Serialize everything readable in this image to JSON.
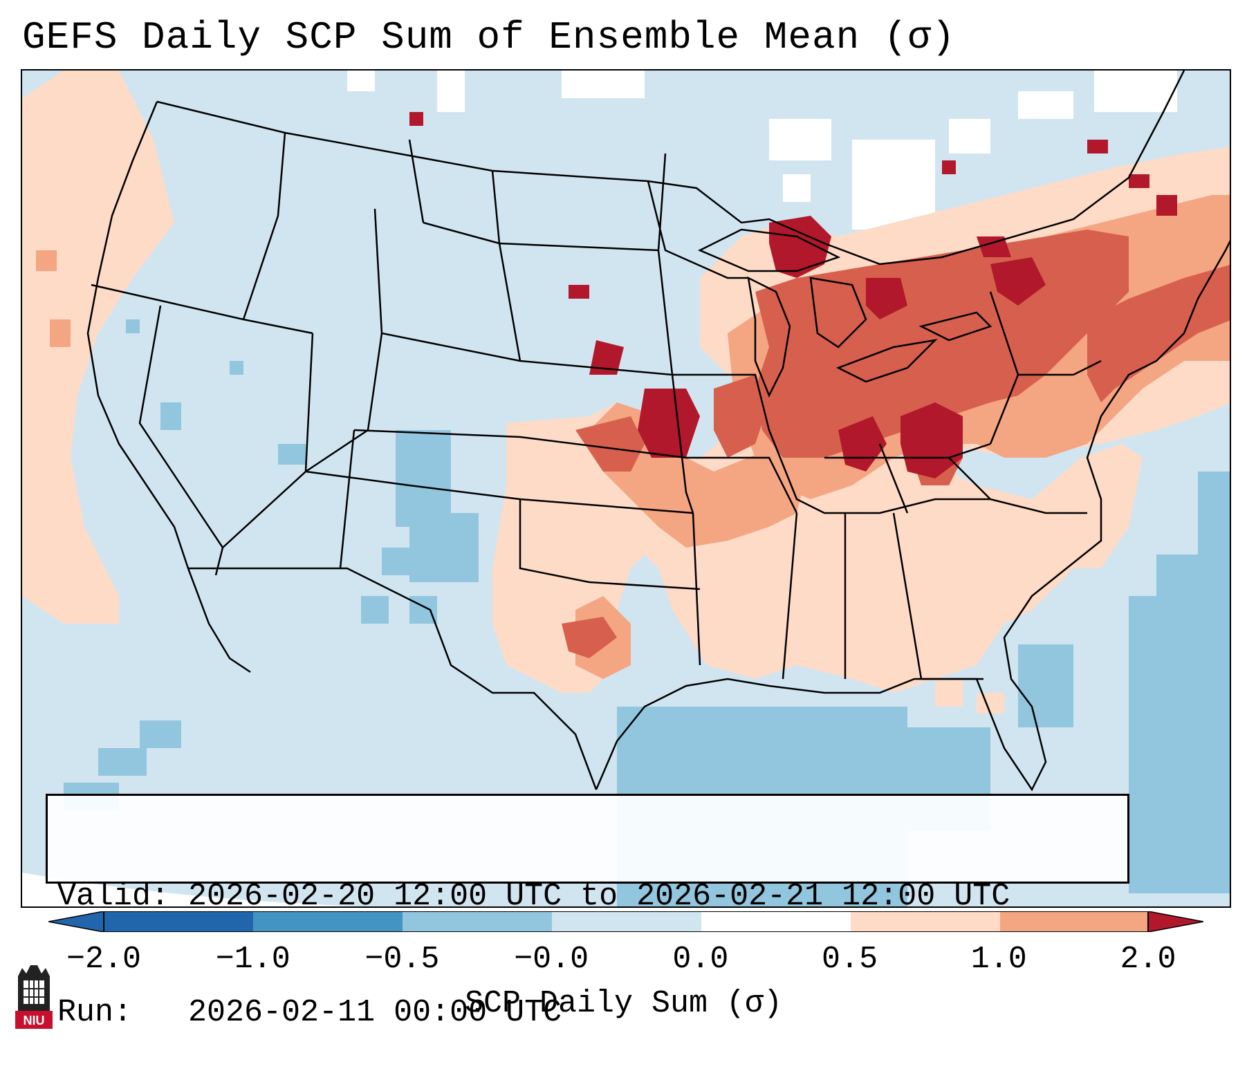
{
  "title": "GEFS Daily SCP Sum of Ensemble Mean (σ)",
  "info": {
    "valid_line": "Valid: 2026-02-20 12:00 UTC to 2026-02-21 12:00 UTC",
    "run_line": "Run:   2026-02-11 00:00 UTC"
  },
  "colorbar": {
    "label": "SCP Daily Sum (σ)",
    "ticks": [
      "−2.0",
      "−1.0",
      "−0.5",
      "−0.0",
      "0.0",
      "0.5",
      "1.0",
      "2.0"
    ],
    "colors": [
      "#2166ac",
      "#4393c3",
      "#92c5de",
      "#d1e5f0",
      "#ffffff",
      "#fddbc7",
      "#f4a582",
      "#d6604d",
      "#b2182b"
    ]
  },
  "map": {
    "domain": "Continental United States",
    "background_color": "#d1e5f0",
    "line_color": "#000000"
  },
  "logo": {
    "text": "NIU",
    "color": "#c8102e"
  }
}
